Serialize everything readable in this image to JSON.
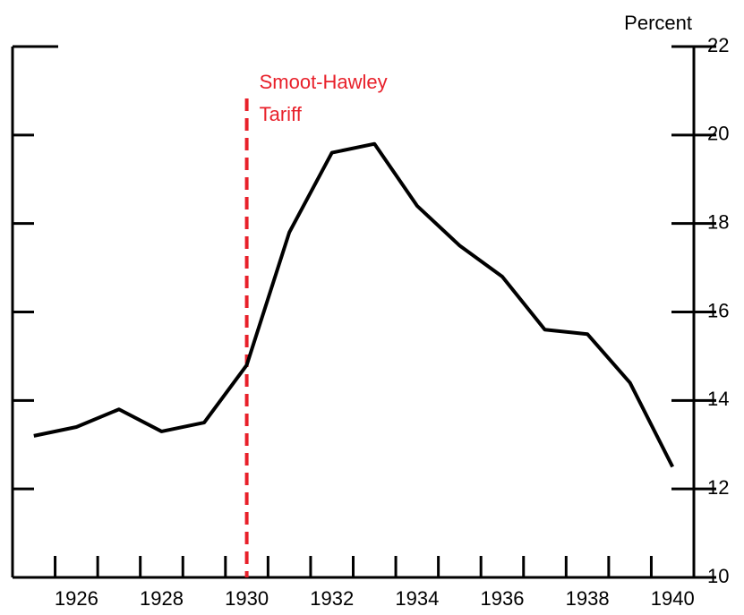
{
  "chart_data": {
    "type": "line",
    "y_axis_label": "Percent",
    "categories": [
      null,
      "1926",
      null,
      "1928",
      null,
      "1930",
      null,
      "1932",
      null,
      "1934",
      null,
      "1936",
      null,
      "1938",
      null,
      "1940"
    ],
    "series": [
      {
        "color": "#000000",
        "values": [
          13.2,
          13.4,
          13.8,
          13.3,
          13.5,
          14.8,
          17.8,
          19.6,
          19.8,
          18.4,
          17.5,
          16.8,
          15.6,
          15.5,
          14.4,
          12.5
        ]
      }
    ],
    "ylim": [
      10,
      22
    ],
    "yticks": [
      10,
      12,
      14,
      16,
      18,
      20,
      22
    ],
    "annotation": {
      "lines": [
        "Smoot-Hawley",
        "Tariff"
      ],
      "at": "1930",
      "color": "#e8202a"
    }
  }
}
